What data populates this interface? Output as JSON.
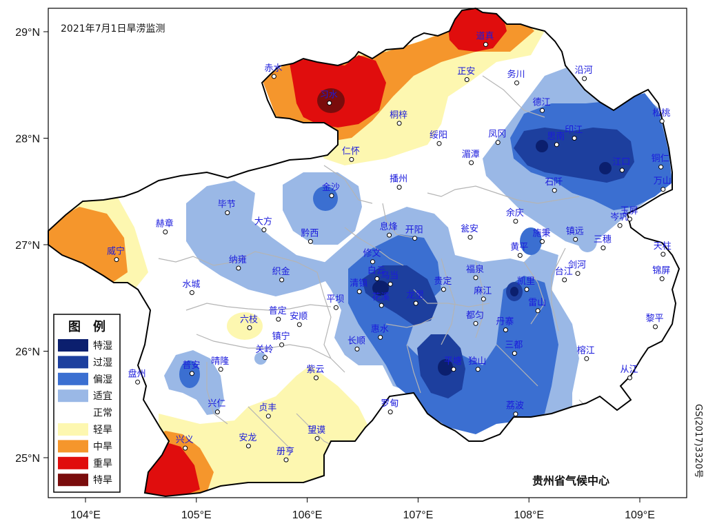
{
  "title": "2021年7月1日旱涝监测",
  "credit": "贵州省气候中心",
  "map_code": "GS(2017)3320号",
  "axes": {
    "x_ticks": [
      "104°E",
      "105°E",
      "106°E",
      "107°E",
      "108°E",
      "109°E"
    ],
    "y_ticks": [
      "29°N",
      "28°N",
      "27°N",
      "26°N",
      "25°N"
    ]
  },
  "legend": {
    "title": "图　例",
    "items": [
      {
        "label": "特湿",
        "color": "#0b1f6e"
      },
      {
        "label": "过湿",
        "color": "#1d3f9e"
      },
      {
        "label": "偏湿",
        "color": "#3b6fd1"
      },
      {
        "label": "适宜",
        "color": "#9ab8e6"
      },
      {
        "label": "正常",
        "color": "#ffffff"
      },
      {
        "label": "轻旱",
        "color": "#fdf7b0"
      },
      {
        "label": "中旱",
        "color": "#f5962c"
      },
      {
        "label": "重旱",
        "color": "#e00d0d"
      },
      {
        "label": "特旱",
        "color": "#7a0c0c"
      }
    ]
  },
  "cities": [
    {
      "name": "道真",
      "lon": 107.61,
      "lat": 28.88
    },
    {
      "name": "赤水",
      "lon": 105.7,
      "lat": 28.58
    },
    {
      "name": "习水",
      "lon": 106.2,
      "lat": 28.33
    },
    {
      "name": "正安",
      "lon": 107.44,
      "lat": 28.55
    },
    {
      "name": "务川",
      "lon": 107.89,
      "lat": 28.52
    },
    {
      "name": "沿河",
      "lon": 108.5,
      "lat": 28.56
    },
    {
      "name": "桐梓",
      "lon": 106.83,
      "lat": 28.14
    },
    {
      "name": "绥阳",
      "lon": 107.19,
      "lat": 27.95
    },
    {
      "name": "凤冈",
      "lon": 107.72,
      "lat": 27.96
    },
    {
      "name": "德江",
      "lon": 108.12,
      "lat": 28.26
    },
    {
      "name": "印江",
      "lon": 108.41,
      "lat": 28.0
    },
    {
      "name": "思南",
      "lon": 108.25,
      "lat": 27.94
    },
    {
      "name": "松桃",
      "lon": 109.2,
      "lat": 28.16
    },
    {
      "name": "仁怀",
      "lon": 106.4,
      "lat": 27.8
    },
    {
      "name": "湄潭",
      "lon": 107.48,
      "lat": 27.77
    },
    {
      "name": "江口",
      "lon": 108.84,
      "lat": 27.7
    },
    {
      "name": "铜仁",
      "lon": 109.19,
      "lat": 27.73
    },
    {
      "name": "万山",
      "lon": 109.21,
      "lat": 27.52
    },
    {
      "name": "金沙",
      "lon": 106.22,
      "lat": 27.46
    },
    {
      "name": "播州",
      "lon": 106.83,
      "lat": 27.54
    },
    {
      "name": "石阡",
      "lon": 108.23,
      "lat": 27.51
    },
    {
      "name": "毕节",
      "lon": 105.28,
      "lat": 27.3
    },
    {
      "name": "大方",
      "lon": 105.61,
      "lat": 27.14
    },
    {
      "name": "黔西",
      "lon": 106.03,
      "lat": 27.03
    },
    {
      "name": "息烽",
      "lon": 106.74,
      "lat": 27.09
    },
    {
      "name": "开阳",
      "lon": 106.97,
      "lat": 27.06
    },
    {
      "name": "余庆",
      "lon": 107.88,
      "lat": 27.22
    },
    {
      "name": "瓮安",
      "lon": 107.47,
      "lat": 27.07
    },
    {
      "name": "赫章",
      "lon": 104.72,
      "lat": 27.12
    },
    {
      "name": "威宁",
      "lon": 104.28,
      "lat": 26.86
    },
    {
      "name": "施秉",
      "lon": 108.12,
      "lat": 27.03
    },
    {
      "name": "镇远",
      "lon": 108.42,
      "lat": 27.05
    },
    {
      "name": "三穗",
      "lon": 108.67,
      "lat": 26.97
    },
    {
      "name": "玉屏",
      "lon": 108.91,
      "lat": 27.24
    },
    {
      "name": "岑巩",
      "lon": 108.82,
      "lat": 27.18
    },
    {
      "name": "天柱",
      "lon": 109.21,
      "lat": 26.91
    },
    {
      "name": "修文",
      "lon": 106.59,
      "lat": 26.84
    },
    {
      "name": "纳雍",
      "lon": 105.38,
      "lat": 26.78
    },
    {
      "name": "织金",
      "lon": 105.77,
      "lat": 26.67
    },
    {
      "name": "白云",
      "lon": 106.63,
      "lat": 26.68
    },
    {
      "name": "乌当",
      "lon": 106.75,
      "lat": 26.63
    },
    {
      "name": "黄平",
      "lon": 107.92,
      "lat": 26.9
    },
    {
      "name": "福泉",
      "lon": 107.52,
      "lat": 26.69
    },
    {
      "name": "剑河",
      "lon": 108.44,
      "lat": 26.73
    },
    {
      "name": "台江",
      "lon": 108.32,
      "lat": 26.67
    },
    {
      "name": "水城",
      "lon": 104.96,
      "lat": 26.55
    },
    {
      "name": "清镇",
      "lon": 106.47,
      "lat": 26.56
    },
    {
      "name": "花溪",
      "lon": 106.67,
      "lat": 26.43
    },
    {
      "name": "龙里",
      "lon": 106.98,
      "lat": 26.45
    },
    {
      "name": "贵定",
      "lon": 107.23,
      "lat": 26.58
    },
    {
      "name": "麻江",
      "lon": 107.59,
      "lat": 26.49
    },
    {
      "name": "凯里",
      "lon": 107.98,
      "lat": 26.58
    },
    {
      "name": "雷山",
      "lon": 108.08,
      "lat": 26.38
    },
    {
      "name": "锦屏",
      "lon": 109.2,
      "lat": 26.68
    },
    {
      "name": "平坝",
      "lon": 106.26,
      "lat": 26.41
    },
    {
      "name": "都匀",
      "lon": 107.52,
      "lat": 26.26
    },
    {
      "name": "普定",
      "lon": 105.74,
      "lat": 26.3
    },
    {
      "name": "安顺",
      "lon": 105.93,
      "lat": 26.25
    },
    {
      "name": "六枝",
      "lon": 105.48,
      "lat": 26.22
    },
    {
      "name": "黎平",
      "lon": 109.14,
      "lat": 26.23
    },
    {
      "name": "丹寨",
      "lon": 107.79,
      "lat": 26.2
    },
    {
      "name": "惠水",
      "lon": 106.66,
      "lat": 26.13
    },
    {
      "name": "镇宁",
      "lon": 105.77,
      "lat": 26.06
    },
    {
      "name": "长顺",
      "lon": 106.45,
      "lat": 26.02
    },
    {
      "name": "三都",
      "lon": 107.87,
      "lat": 25.98
    },
    {
      "name": "关岭",
      "lon": 105.62,
      "lat": 25.94
    },
    {
      "name": "榕江",
      "lon": 108.52,
      "lat": 25.93
    },
    {
      "name": "平塘",
      "lon": 107.32,
      "lat": 25.83
    },
    {
      "name": "独山",
      "lon": 107.54,
      "lat": 25.83
    },
    {
      "name": "晴隆",
      "lon": 105.22,
      "lat": 25.83
    },
    {
      "name": "普安",
      "lon": 104.96,
      "lat": 25.79
    },
    {
      "name": "从江",
      "lon": 108.91,
      "lat": 25.75
    },
    {
      "name": "盘州",
      "lon": 104.47,
      "lat": 25.71
    },
    {
      "name": "紫云",
      "lon": 106.08,
      "lat": 25.75
    },
    {
      "name": "兴仁",
      "lon": 105.19,
      "lat": 25.43
    },
    {
      "name": "罗甸",
      "lon": 106.75,
      "lat": 25.43
    },
    {
      "name": "贞丰",
      "lon": 105.65,
      "lat": 25.39
    },
    {
      "name": "荔波",
      "lon": 107.88,
      "lat": 25.41
    },
    {
      "name": "望谟",
      "lon": 106.09,
      "lat": 25.18
    },
    {
      "name": "安龙",
      "lon": 105.47,
      "lat": 25.11
    },
    {
      "name": "兴义",
      "lon": 104.9,
      "lat": 25.09
    },
    {
      "name": "册亨",
      "lon": 105.81,
      "lat": 24.98
    }
  ]
}
